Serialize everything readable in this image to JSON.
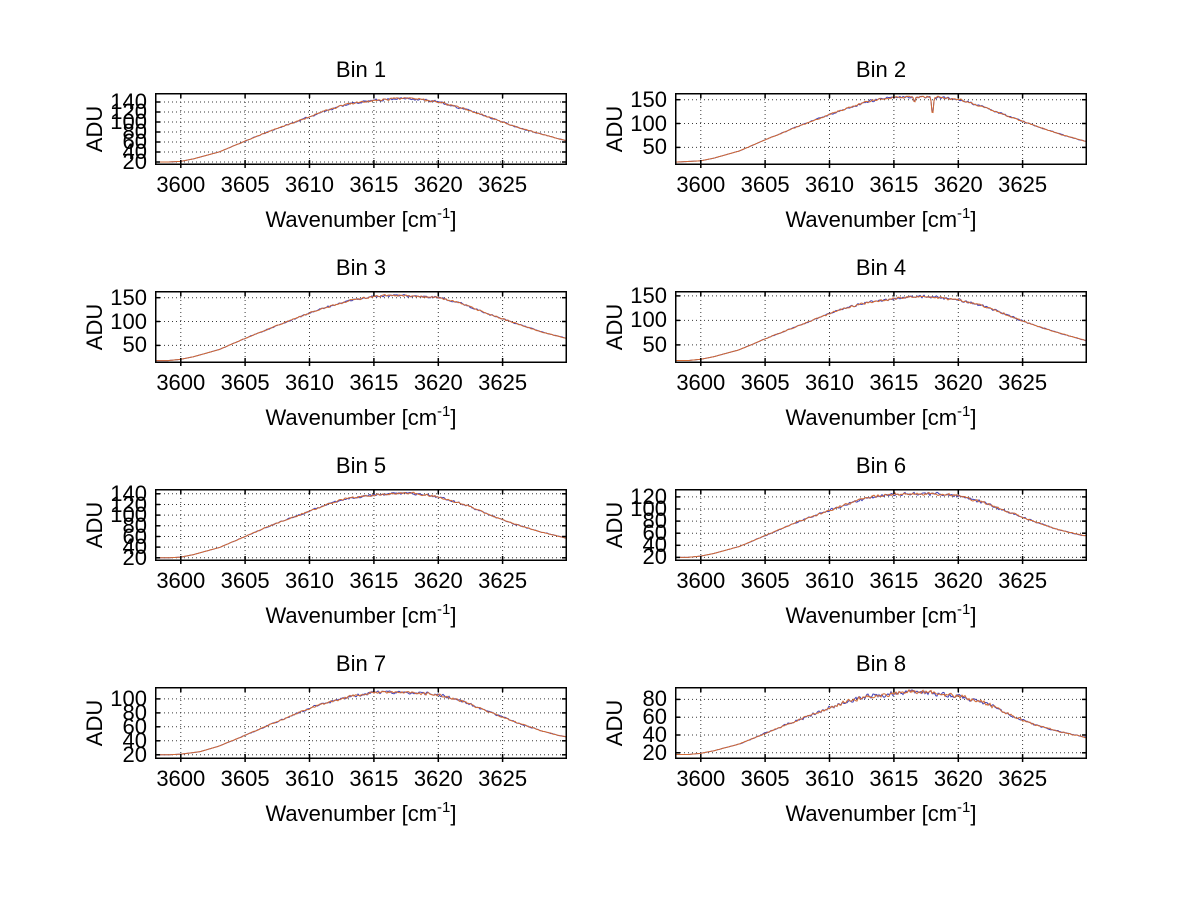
{
  "figure": {
    "background": "#ffffff",
    "text_color": "#000000",
    "axis_color": "#000000",
    "grid_color": "#3a3a3a",
    "trace_under_color": "#4040b8",
    "trace_main_color": "#d26a33"
  },
  "chart_data": [
    {
      "type": "line",
      "title": "Bin 1",
      "ylabel": "ADU",
      "xlabel": "Wavenumber [cm⁻¹]",
      "xlabel_pre": "Wavenumber [cm",
      "xlabel_sup": "-1",
      "xlabel_post": "]",
      "xlim": [
        3598,
        3630
      ],
      "ylim": [
        14,
        158
      ],
      "x_ticks": [
        3600,
        3605,
        3610,
        3615,
        3620,
        3625
      ],
      "y_ticks": [
        20,
        40,
        60,
        80,
        100,
        120,
        140
      ],
      "grid": true,
      "legend": "none",
      "series": [
        {
          "name": "spectrum-under",
          "color": "#4040b8"
        },
        {
          "name": "spectrum-main",
          "color": "#d26a33"
        }
      ],
      "shape_x": [
        3598,
        3599,
        3600,
        3601,
        3603,
        3605,
        3607,
        3609,
        3611,
        3613,
        3615,
        3616.5,
        3618,
        3620,
        3622,
        3624,
        3626,
        3628,
        3630
      ],
      "shape_s": [
        0,
        0,
        0.01,
        0.05,
        0.16,
        0.33,
        0.49,
        0.64,
        0.79,
        0.91,
        0.975,
        1.0,
        0.99,
        0.95,
        0.84,
        0.7,
        0.56,
        0.44,
        0.33
      ],
      "base": 20,
      "peak": 147,
      "noise": 2.6,
      "seed": 11,
      "dips": []
    },
    {
      "type": "line",
      "title": "Bin 2",
      "ylabel": "ADU",
      "xlabel": "Wavenumber [cm⁻¹]",
      "xlabel_pre": "Wavenumber [cm",
      "xlabel_sup": "-1",
      "xlabel_post": "]",
      "xlim": [
        3598,
        3630
      ],
      "ylim": [
        13,
        164
      ],
      "x_ticks": [
        3600,
        3605,
        3610,
        3615,
        3620,
        3625
      ],
      "y_ticks": [
        50,
        100,
        150
      ],
      "grid": true,
      "legend": "none",
      "series": [
        {
          "name": "spectrum-under",
          "color": "#4040b8"
        },
        {
          "name": "spectrum-main",
          "color": "#d26a33"
        }
      ],
      "shape_x": [
        3598,
        3599,
        3600,
        3601,
        3603,
        3605,
        3607,
        3609,
        3611,
        3613,
        3615,
        3616.5,
        3618,
        3620,
        3622,
        3624,
        3626,
        3628,
        3630
      ],
      "shape_s": [
        0,
        0.01,
        0.02,
        0.06,
        0.17,
        0.34,
        0.5,
        0.65,
        0.8,
        0.92,
        0.98,
        1.0,
        0.99,
        0.95,
        0.84,
        0.69,
        0.55,
        0.42,
        0.31
      ],
      "base": 19,
      "peak": 157,
      "noise": 2.8,
      "seed": 22,
      "dips": [
        {
          "x": 3618.0,
          "depth": 38,
          "w": 0.1
        },
        {
          "x": 3616.6,
          "depth": 11,
          "w": 0.08
        }
      ]
    },
    {
      "type": "line",
      "title": "Bin 3",
      "ylabel": "ADU",
      "xlabel": "Wavenumber [cm⁻¹]",
      "xlabel_pre": "Wavenumber [cm",
      "xlabel_sup": "-1",
      "xlabel_post": "]",
      "xlim": [
        3598,
        3630
      ],
      "ylim": [
        13,
        164
      ],
      "x_ticks": [
        3600,
        3605,
        3610,
        3615,
        3620,
        3625
      ],
      "y_ticks": [
        50,
        100,
        150
      ],
      "grid": true,
      "legend": "none",
      "series": [
        {
          "name": "spectrum-under",
          "color": "#4040b8"
        },
        {
          "name": "spectrum-main",
          "color": "#d26a33"
        }
      ],
      "shape_x": [
        3598,
        3599,
        3600,
        3601,
        3603,
        3605,
        3607,
        3609,
        3611,
        3613,
        3615,
        3616.5,
        3618,
        3620,
        3622,
        3624,
        3626,
        3628,
        3630
      ],
      "shape_s": [
        0,
        0,
        0.02,
        0.06,
        0.17,
        0.34,
        0.5,
        0.65,
        0.8,
        0.92,
        0.975,
        1.0,
        0.995,
        0.96,
        0.86,
        0.71,
        0.57,
        0.44,
        0.34
      ],
      "base": 18,
      "peak": 155,
      "noise": 2.6,
      "seed": 33,
      "dips": []
    },
    {
      "type": "line",
      "title": "Bin 4",
      "ylabel": "ADU",
      "xlabel": "Wavenumber [cm⁻¹]",
      "xlabel_pre": "Wavenumber [cm",
      "xlabel_sup": "-1",
      "xlabel_post": "]",
      "xlim": [
        3598,
        3630
      ],
      "ylim": [
        13,
        160
      ],
      "x_ticks": [
        3600,
        3605,
        3610,
        3615,
        3620,
        3625
      ],
      "y_ticks": [
        50,
        100,
        150
      ],
      "grid": true,
      "legend": "none",
      "series": [
        {
          "name": "spectrum-under",
          "color": "#4040b8"
        },
        {
          "name": "spectrum-main",
          "color": "#d26a33"
        }
      ],
      "shape_x": [
        3598,
        3599,
        3600,
        3601,
        3603,
        3605,
        3607,
        3609,
        3611,
        3613,
        3615,
        3617,
        3618.5,
        3620,
        3622,
        3624,
        3626,
        3628,
        3630
      ],
      "shape_s": [
        0,
        0,
        0.02,
        0.06,
        0.17,
        0.34,
        0.5,
        0.66,
        0.81,
        0.92,
        0.975,
        1.0,
        0.99,
        0.96,
        0.85,
        0.7,
        0.55,
        0.42,
        0.31
      ],
      "base": 18,
      "peak": 148,
      "noise": 2.8,
      "seed": 44,
      "dips": []
    },
    {
      "type": "line",
      "title": "Bin 5",
      "ylabel": "ADU",
      "xlabel": "Wavenumber [cm⁻¹]",
      "xlabel_pre": "Wavenumber [cm",
      "xlabel_sup": "-1",
      "xlabel_post": "]",
      "xlim": [
        3598,
        3630
      ],
      "ylim": [
        14,
        149
      ],
      "x_ticks": [
        3600,
        3605,
        3610,
        3615,
        3620,
        3625
      ],
      "y_ticks": [
        20,
        40,
        60,
        80,
        100,
        120,
        140
      ],
      "grid": true,
      "legend": "none",
      "series": [
        {
          "name": "spectrum-under",
          "color": "#4040b8"
        },
        {
          "name": "spectrum-main",
          "color": "#d26a33"
        }
      ],
      "shape_x": [
        3598,
        3599,
        3600,
        3601,
        3603,
        3605,
        3607,
        3609,
        3611,
        3613,
        3615,
        3616.5,
        3618,
        3620,
        3622,
        3624,
        3626,
        3628,
        3630
      ],
      "shape_s": [
        0,
        0,
        0.01,
        0.05,
        0.16,
        0.33,
        0.5,
        0.65,
        0.8,
        0.92,
        0.98,
        1.0,
        0.99,
        0.95,
        0.83,
        0.66,
        0.52,
        0.4,
        0.3
      ],
      "base": 20,
      "peak": 141,
      "noise": 2.4,
      "seed": 55,
      "dips": []
    },
    {
      "type": "line",
      "title": "Bin 6",
      "ylabel": "ADU",
      "xlabel": "Wavenumber [cm⁻¹]",
      "xlabel_pre": "Wavenumber [cm",
      "xlabel_sup": "-1",
      "xlabel_post": "]",
      "xlim": [
        3598,
        3630
      ],
      "ylim": [
        14,
        133
      ],
      "x_ticks": [
        3600,
        3605,
        3610,
        3615,
        3620,
        3625
      ],
      "y_ticks": [
        20,
        40,
        60,
        80,
        100,
        120
      ],
      "grid": true,
      "legend": "none",
      "series": [
        {
          "name": "spectrum-under",
          "color": "#4040b8"
        },
        {
          "name": "spectrum-main",
          "color": "#d26a33"
        }
      ],
      "shape_x": [
        3598,
        3599,
        3600,
        3601,
        3603,
        3605,
        3607,
        3609,
        3611,
        3613,
        3615,
        3616.5,
        3618,
        3620,
        3622,
        3624,
        3626,
        3628,
        3630
      ],
      "shape_s": [
        0,
        0,
        0.02,
        0.06,
        0.17,
        0.34,
        0.51,
        0.66,
        0.81,
        0.93,
        0.98,
        1.0,
        0.99,
        0.96,
        0.86,
        0.7,
        0.55,
        0.42,
        0.33
      ],
      "base": 20,
      "peak": 126,
      "noise": 2.8,
      "seed": 66,
      "dips": []
    },
    {
      "type": "line",
      "title": "Bin 7",
      "ylabel": "ADU",
      "xlabel": "Wavenumber [cm⁻¹]",
      "xlabel_pre": "Wavenumber [cm",
      "xlabel_sup": "-1",
      "xlabel_post": "]",
      "xlim": [
        3598,
        3630
      ],
      "ylim": [
        14,
        117
      ],
      "x_ticks": [
        3600,
        3605,
        3610,
        3615,
        3620,
        3625
      ],
      "y_ticks": [
        20,
        40,
        60,
        80,
        100
      ],
      "grid": true,
      "legend": "none",
      "series": [
        {
          "name": "spectrum-under",
          "color": "#4040b8"
        },
        {
          "name": "spectrum-main",
          "color": "#d26a33"
        }
      ],
      "shape_x": [
        3598,
        3599,
        3600,
        3601.5,
        3603,
        3605,
        3607,
        3609,
        3611,
        3613,
        3615,
        3617,
        3618.5,
        3620,
        3622,
        3624,
        3626,
        3628,
        3630
      ],
      "shape_s": [
        0,
        0,
        0.01,
        0.05,
        0.14,
        0.31,
        0.49,
        0.65,
        0.81,
        0.93,
        0.98,
        1.0,
        0.99,
        0.95,
        0.84,
        0.68,
        0.52,
        0.38,
        0.28
      ],
      "base": 20,
      "peak": 110,
      "noise": 2.4,
      "seed": 77,
      "dips": []
    },
    {
      "type": "line",
      "title": "Bin 8",
      "ylabel": "ADU",
      "xlabel": "Wavenumber [cm⁻¹]",
      "xlabel_pre": "Wavenumber [cm",
      "xlabel_sup": "-1",
      "xlabel_post": "]",
      "xlim": [
        3598,
        3630
      ],
      "ylim": [
        13,
        94
      ],
      "x_ticks": [
        3600,
        3605,
        3610,
        3615,
        3620,
        3625
      ],
      "y_ticks": [
        20,
        40,
        60,
        80
      ],
      "grid": true,
      "legend": "none",
      "series": [
        {
          "name": "spectrum-under",
          "color": "#4040b8"
        },
        {
          "name": "spectrum-main",
          "color": "#d26a33"
        }
      ],
      "shape_x": [
        3598,
        3599,
        3600,
        3601,
        3603,
        3605,
        3607,
        3609,
        3611,
        3613,
        3615,
        3616.5,
        3618,
        3620,
        3622,
        3624,
        3626,
        3628,
        3630
      ],
      "shape_s": [
        0,
        0,
        0.02,
        0.06,
        0.17,
        0.34,
        0.51,
        0.67,
        0.82,
        0.94,
        0.985,
        1.0,
        0.99,
        0.95,
        0.83,
        0.64,
        0.48,
        0.36,
        0.27
      ],
      "base": 18,
      "peak": 88,
      "noise": 3.0,
      "seed": 88,
      "dips": []
    }
  ]
}
